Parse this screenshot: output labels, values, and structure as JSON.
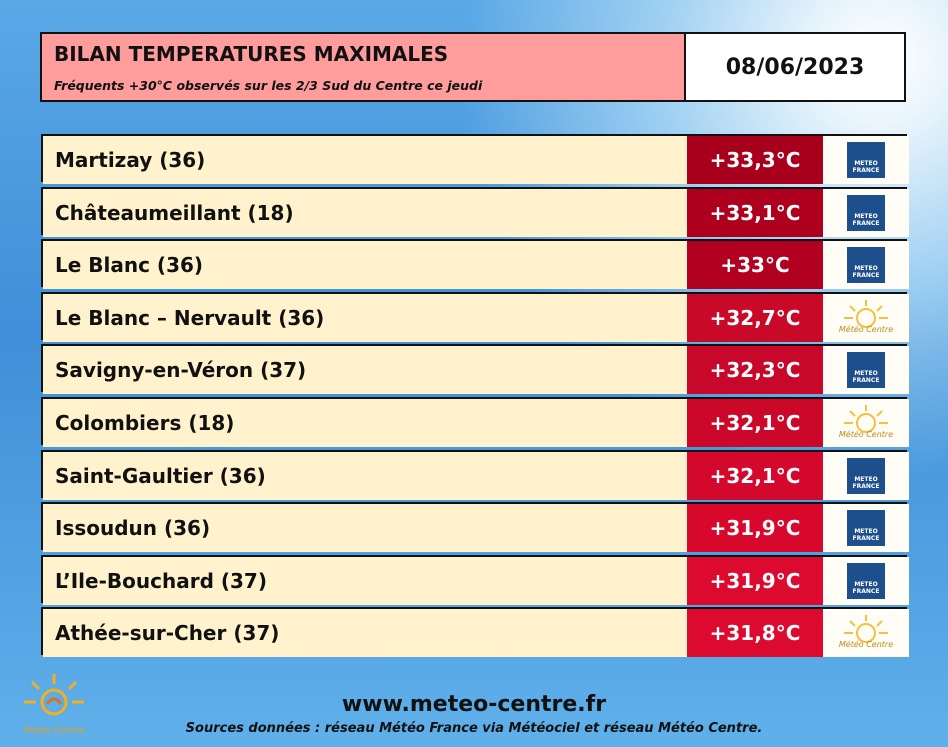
{
  "header": {
    "title": "BILAN TEMPERATURES MAXIMALES",
    "subtitle": "Fréquents +30°C observés sur les 2/3 Sud du Centre ce jeudi",
    "date": "08/06/2023"
  },
  "rows": [
    {
      "station": "Martizay (36)",
      "temperature": "+33,3°C",
      "source": "METEO FRANCE"
    },
    {
      "station": "Châteaumeillant (18)",
      "temperature": "+33,1°C",
      "source": "METEO FRANCE"
    },
    {
      "station": "Le Blanc (36)",
      "temperature": "+33°C",
      "source": "METEO FRANCE"
    },
    {
      "station": "Le Blanc – Nervault (36)",
      "temperature": "+32,7°C",
      "source": "Météo Centre"
    },
    {
      "station": "Savigny-en-Véron (37)",
      "temperature": "+32,3°C",
      "source": "METEO FRANCE"
    },
    {
      "station": "Colombiers (18)",
      "temperature": "+32,1°C",
      "source": "Météo Centre"
    },
    {
      "station": "Saint-Gaultier (36)",
      "temperature": "+32,1°C",
      "source": "METEO FRANCE"
    },
    {
      "station": "Issoudun (36)",
      "temperature": "+31,9°C",
      "source": "METEO FRANCE"
    },
    {
      "station": "L’Ile-Bouchard (37)",
      "temperature": "+31,9°C",
      "source": "METEO FRANCE"
    },
    {
      "station": "Athée-sur-Cher (37)",
      "temperature": "+31,8°C",
      "source": "Météo Centre"
    }
  ],
  "footer": {
    "logo": "Météo Centre",
    "website": "www.meteo-centre.fr",
    "sources": "Sources données : réseau Météo France via Météociel et réseau Météo Centre."
  }
}
